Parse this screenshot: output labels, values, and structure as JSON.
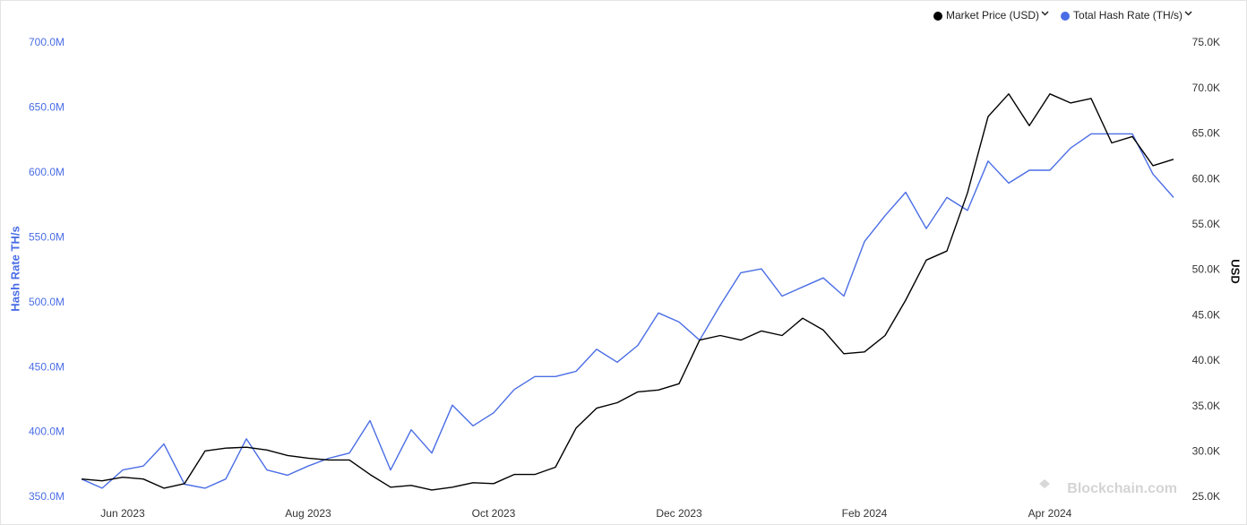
{
  "chart_data": {
    "type": "line",
    "legend": "top-right",
    "watermark": "Blockchain.com",
    "ylabel": "Hash Rate TH/s",
    "y2label": "USD",
    "categories": [
      null,
      null,
      "Jun 2023",
      null,
      null,
      null,
      null,
      null,
      null,
      null,
      null,
      "Aug 2023",
      null,
      null,
      null,
      null,
      null,
      null,
      null,
      null,
      "Oct 2023",
      null,
      null,
      null,
      null,
      null,
      null,
      null,
      null,
      "Dec 2023",
      null,
      null,
      null,
      null,
      null,
      null,
      null,
      null,
      "Feb 2024",
      null,
      null,
      null,
      null,
      null,
      null,
      null,
      null,
      "Apr 2024",
      null,
      null,
      null,
      null,
      null,
      null
    ],
    "series": [
      {
        "name": "Market Price (USD)",
        "color": "#000000",
        "axis": "y2",
        "values": [
          27000,
          26800,
          27200,
          27000,
          26000,
          26500,
          30100,
          30400,
          30500,
          30200,
          29600,
          29300,
          29100,
          29100,
          27500,
          26100,
          26300,
          25800,
          26100,
          26600,
          26500,
          27500,
          27500,
          28300,
          32600,
          34800,
          35400,
          36600,
          36800,
          37500,
          42300,
          42800,
          42300,
          43300,
          42800,
          44700,
          43400,
          40800,
          41000,
          42800,
          46700,
          51100,
          52100,
          58500,
          66900,
          69400,
          65900,
          69400,
          68400,
          68900,
          64000,
          64700,
          61500,
          62200
        ]
      },
      {
        "name": "Total Hash Rate (TH/s)",
        "color": "#4a6de5",
        "axis": "y",
        "values": [
          364000000,
          357000000,
          371000000,
          374000000,
          391000000,
          360000000,
          357000000,
          364000000,
          395000000,
          371000000,
          367000000,
          374000000,
          380000000,
          384000000,
          409000000,
          371000000,
          402000000,
          384000000,
          421000000,
          405000000,
          415000000,
          433000000,
          443000000,
          443000000,
          447000000,
          464000000,
          454000000,
          467000000,
          492000000,
          485000000,
          471000000,
          498000000,
          523000000,
          526000000,
          505000000,
          512000000,
          519000000,
          505000000,
          547000000,
          567000000,
          585000000,
          557000000,
          581000000,
          571000000,
          609000000,
          592000000,
          602000000,
          602000000,
          619000000,
          630000000,
          630000000,
          630000000,
          599000000,
          581000000
        ]
      }
    ],
    "ylim": [
      350000000,
      700000000
    ],
    "yticks": [
      {
        "value": 350000000,
        "label": "350.0M"
      },
      {
        "value": 400000000,
        "label": "400.0M"
      },
      {
        "value": 450000000,
        "label": "450.0M"
      },
      {
        "value": 500000000,
        "label": "500.0M"
      },
      {
        "value": 550000000,
        "label": "550.0M"
      },
      {
        "value": 600000000,
        "label": "600.0M"
      },
      {
        "value": 650000000,
        "label": "650.0M"
      },
      {
        "value": 700000000,
        "label": "700.0M"
      }
    ],
    "y2lim": [
      25000,
      75000
    ],
    "y2ticks": [
      {
        "value": 25000,
        "label": "25.0K"
      },
      {
        "value": 30000,
        "label": "30.0K"
      },
      {
        "value": 35000,
        "label": "35.0K"
      },
      {
        "value": 40000,
        "label": "40.0K"
      },
      {
        "value": 45000,
        "label": "45.0K"
      },
      {
        "value": 50000,
        "label": "50.0K"
      },
      {
        "value": 55000,
        "label": "55.0K"
      },
      {
        "value": 60000,
        "label": "60.0K"
      },
      {
        "value": 65000,
        "label": "65.0K"
      },
      {
        "value": 70000,
        "label": "70.0K"
      },
      {
        "value": 75000,
        "label": "75.0K"
      }
    ]
  }
}
